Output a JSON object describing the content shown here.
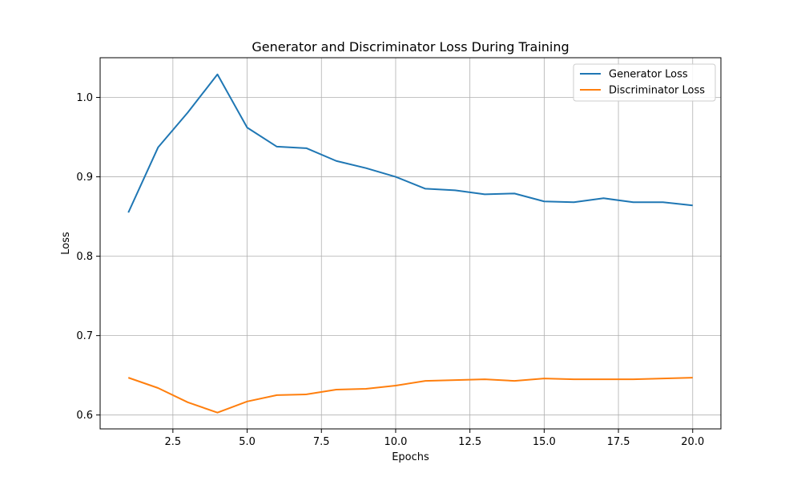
{
  "chart_data": {
    "type": "line",
    "title": "Generator and Discriminator Loss During Training",
    "xlabel": "Epochs",
    "ylabel": "Loss",
    "x": [
      1,
      2,
      3,
      4,
      5,
      6,
      7,
      8,
      9,
      10,
      11,
      12,
      13,
      14,
      15,
      16,
      17,
      18,
      19,
      20
    ],
    "xlim": [
      0.05,
      20.95
    ],
    "ylim": [
      0.5825,
      1.05
    ],
    "xticks": [
      "2.5",
      "5.0",
      "7.5",
      "10.0",
      "12.5",
      "15.0",
      "17.5",
      "20.0"
    ],
    "yticks": [
      "0.6",
      "0.7",
      "0.8",
      "0.9",
      "1.0"
    ],
    "grid": true,
    "legend_position": "top-right",
    "series": [
      {
        "name": "Generator Loss",
        "color": "#1f77b4",
        "values": [
          0.855,
          0.937,
          0.981,
          1.029,
          0.962,
          0.938,
          0.936,
          0.92,
          0.911,
          0.9,
          0.885,
          0.883,
          0.878,
          0.879,
          0.869,
          0.868,
          0.873,
          0.868,
          0.868,
          0.864
        ]
      },
      {
        "name": "Discriminator Loss",
        "color": "#ff7f0e",
        "values": [
          0.647,
          0.634,
          0.616,
          0.603,
          0.617,
          0.625,
          0.626,
          0.632,
          0.633,
          0.637,
          0.643,
          0.644,
          0.645,
          0.643,
          0.646,
          0.645,
          0.645,
          0.645,
          0.646,
          0.647
        ]
      }
    ]
  }
}
